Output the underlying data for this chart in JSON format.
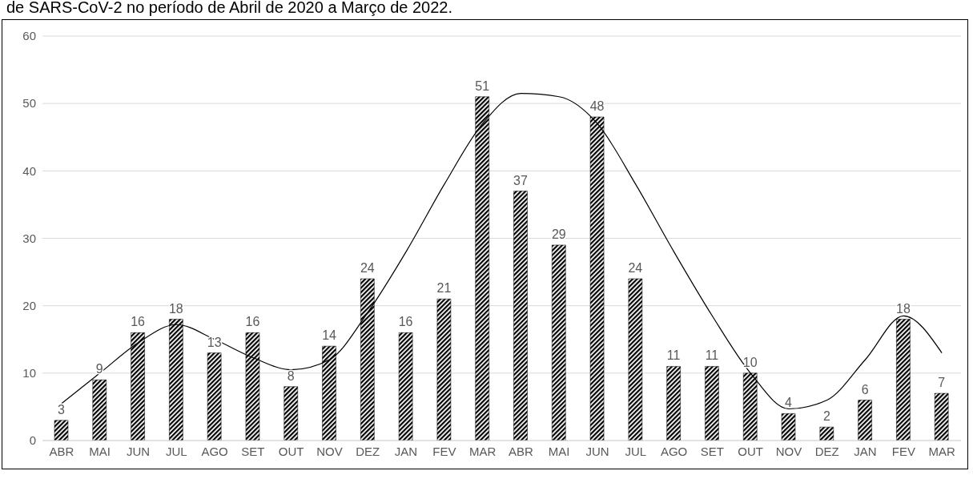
{
  "chart_data": {
    "type": "bar",
    "title": "de SARS-CoV-2 no período de Abril de 2020 a Março de 2022.",
    "categories": [
      "ABR",
      "MAI",
      "JUN",
      "JUL",
      "AGO",
      "SET",
      "OUT",
      "NOV",
      "DEZ",
      "JAN",
      "FEV",
      "MAR",
      "ABR",
      "MAI",
      "JUN",
      "JUL",
      "AGO",
      "SET",
      "OUT",
      "NOV",
      "DEZ",
      "JAN",
      "FEV",
      "MAR"
    ],
    "series": [
      {
        "color": "#000000",
        "values": [
          3,
          9,
          16,
          18,
          13,
          16,
          8,
          14,
          24,
          16,
          21,
          51,
          37,
          29,
          48,
          24,
          11,
          11,
          10,
          4,
          2,
          6,
          18,
          7
        ],
        "value_labels": [
          "3",
          "9",
          "16",
          "18",
          "13",
          "16",
          "8",
          "14",
          "24",
          "16",
          "21",
          "51",
          "37",
          "29",
          "48",
          "24",
          "11",
          "11",
          "10",
          "4",
          "2",
          "6",
          "18",
          "7"
        ]
      },
      {
        "type": "line",
        "color": "#000000",
        "values": [
          5.5,
          10,
          14.5,
          17.2,
          15,
          12.3,
          10.5,
          12,
          19,
          28,
          38,
          47,
          51.5,
          51,
          47,
          38,
          28,
          18.5,
          10,
          4.7,
          6,
          12,
          18.5,
          13
        ],
        "marker": "none",
        "line_style": "solid"
      }
    ],
    "ylim": [
      0,
      60
    ],
    "yticks": [
      0,
      10,
      20,
      30,
      40,
      50,
      60
    ],
    "grid": "y"
  }
}
